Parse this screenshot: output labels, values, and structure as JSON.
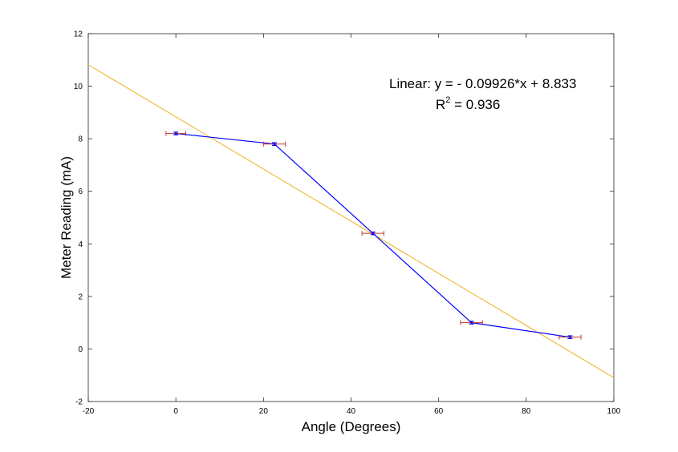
{
  "chart_data": {
    "type": "line",
    "xlabel": "Angle (Degrees)",
    "ylabel": "Meter Reading (mA)",
    "xlim": [
      -20,
      100
    ],
    "ylim": [
      -2,
      12
    ],
    "x_ticks": [
      -20,
      0,
      20,
      40,
      60,
      80,
      100
    ],
    "y_ticks": [
      -2,
      0,
      2,
      4,
      6,
      8,
      10,
      12
    ],
    "x_tick_labels": [
      "-20",
      "0",
      "20",
      "40",
      "60",
      "80",
      "100"
    ],
    "y_tick_labels": [
      "-2",
      "0",
      "2",
      "4",
      "6",
      "8",
      "10",
      "12"
    ],
    "grid": false,
    "series": [
      {
        "x": [
          0,
          22.5,
          45,
          67.5,
          90
        ],
        "y": [
          8.2,
          7.8,
          4.4,
          1.0,
          0.45
        ],
        "x_error": [
          2.25,
          2.5,
          2.5,
          2.5,
          2.5
        ],
        "y_error": [
          0.05,
          0.05,
          0.05,
          0.05,
          0.05
        ],
        "color": "#0000ff",
        "error_color": "#c0392b"
      }
    ],
    "fit": {
      "type": "linear",
      "slope": -0.09926,
      "intercept": 8.833,
      "x_range": [
        -20,
        100
      ],
      "color": "#edb120",
      "equation_label": "Linear:  y = - 0.09926*x + 8.833",
      "r2_prefix": "R",
      "r2_superscript": "2",
      "r2_value": " = 0.936"
    }
  }
}
